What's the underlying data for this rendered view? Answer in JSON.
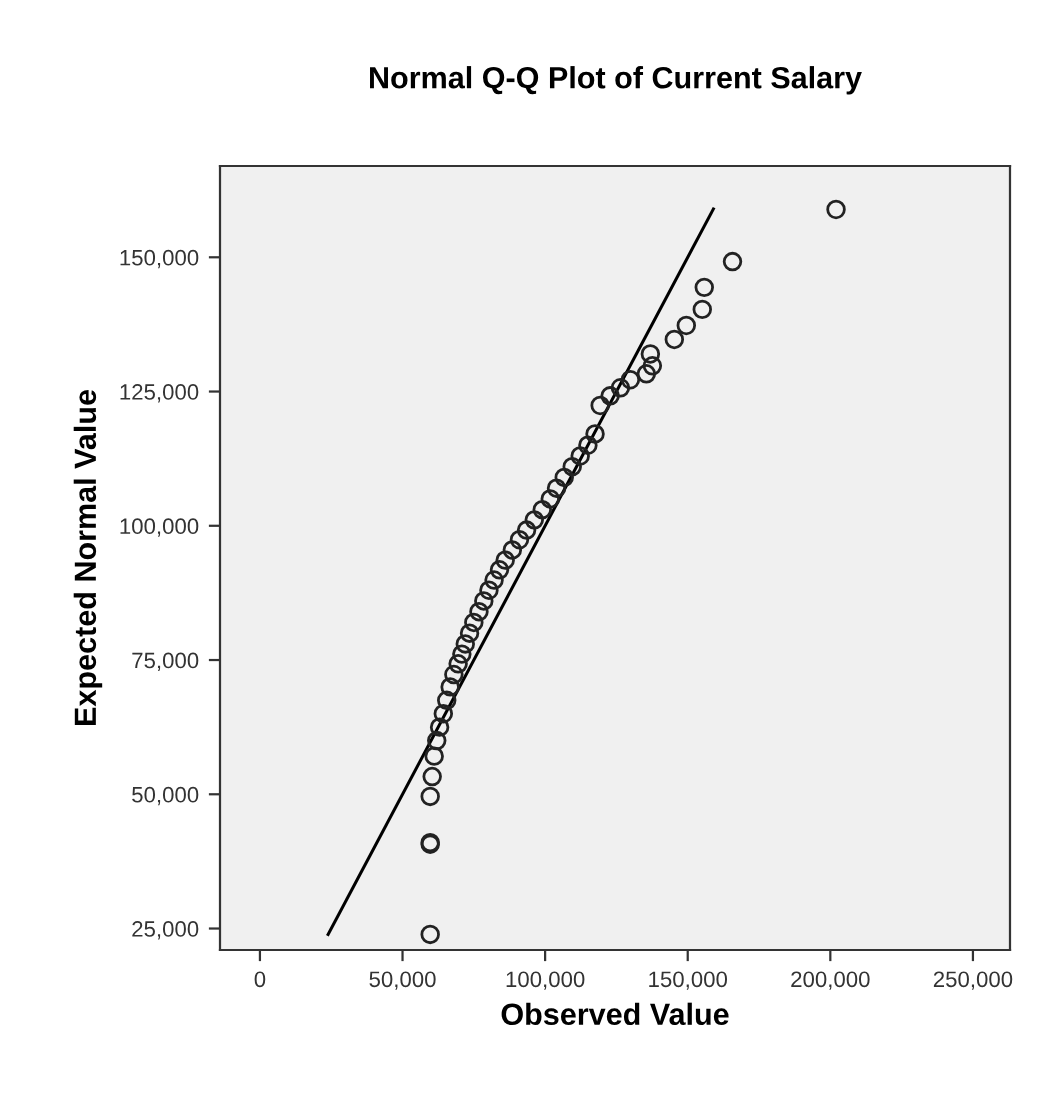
{
  "chart_data": {
    "type": "scatter",
    "title": "Normal Q-Q Plot of Current Salary",
    "xlabel": "Observed Value",
    "ylabel": "Expected Normal Value",
    "xlim": [
      -14000,
      263000
    ],
    "ylim": [
      21000,
      167000
    ],
    "xticks": [
      {
        "value": 0,
        "label": "0"
      },
      {
        "value": 50000,
        "label": "50,000"
      },
      {
        "value": 100000,
        "label": "100,000"
      },
      {
        "value": 150000,
        "label": "150,000"
      },
      {
        "value": 200000,
        "label": "200,000"
      },
      {
        "value": 250000,
        "label": "250,000"
      }
    ],
    "yticks": [
      {
        "value": 25000,
        "label": "25,000"
      },
      {
        "value": 50000,
        "label": "50,000"
      },
      {
        "value": 75000,
        "label": "75,000"
      },
      {
        "value": 100000,
        "label": "100,000"
      },
      {
        "value": 125000,
        "label": "125,000"
      },
      {
        "value": 150000,
        "label": "150,000"
      }
    ],
    "grid": false,
    "legend": false,
    "marker": "circle",
    "series": [
      {
        "color": "#222222",
        "x": [
          59700,
          59700,
          59700,
          59700,
          60400,
          61100,
          62000,
          63000,
          64300,
          65500,
          66700,
          68000,
          69500,
          70800,
          72000,
          73500,
          75000,
          76800,
          78500,
          80300,
          82100,
          84000,
          86000,
          88500,
          91000,
          93500,
          96200,
          99000,
          101800,
          104000,
          106700,
          109500,
          112300,
          115000,
          117500,
          119300,
          122800,
          126400,
          129900,
          135500,
          137600,
          136900,
          145300,
          149500,
          155100,
          155800,
          165700,
          202000
        ],
        "values": [
          23900,
          40700,
          41000,
          49600,
          53300,
          57100,
          60000,
          62500,
          65000,
          67500,
          70000,
          72300,
          74300,
          76100,
          78000,
          80000,
          82000,
          84000,
          86000,
          88000,
          89900,
          91800,
          93600,
          95500,
          97400,
          99200,
          101100,
          103000,
          105000,
          107000,
          109000,
          111000,
          113000,
          115000,
          117100,
          122400,
          124200,
          125700,
          127200,
          128300,
          129800,
          132000,
          134700,
          137300,
          140300,
          144400,
          149200,
          158900
        ]
      },
      {
        "type": "line",
        "color": "#000000",
        "line_style": "solid",
        "marker": "none",
        "x": [
          23900,
          159000
        ],
        "values": [
          23900,
          159000
        ]
      }
    ]
  }
}
